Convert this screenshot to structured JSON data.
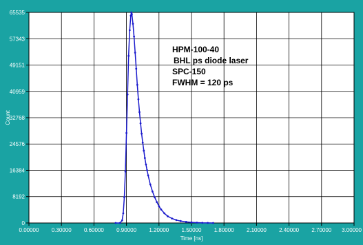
{
  "chart_data": {
    "type": "scatter",
    "xlabel": "Time [ns]",
    "ylabel": "Count",
    "xlim": [
      0.0,
      3.0
    ],
    "ylim": [
      0,
      65535
    ],
    "x_ticks": [
      "0.00000",
      "0.30000",
      "0.60000",
      "0.90000",
      "1.20000",
      "1.50000",
      "1.80000",
      "2.10000",
      "2.40000",
      "2.70000",
      "3.00000"
    ],
    "y_ticks": [
      "0",
      "8192",
      "16384",
      "24576",
      "32768",
      "40959",
      "49151",
      "57343",
      "65535"
    ],
    "grid": true,
    "annotation_lines": [
      "HPM-100-40",
      "BHL ps diode laser",
      "SPC-150",
      "FWHM = 120 ps"
    ],
    "series": [
      {
        "color": "#1a1acc",
        "points": [
          [
            0.8,
            0
          ],
          [
            0.84,
            0
          ],
          [
            0.86,
            800
          ],
          [
            0.87,
            3000
          ],
          [
            0.88,
            8000
          ],
          [
            0.89,
            16000
          ],
          [
            0.9,
            28000
          ],
          [
            0.91,
            40000
          ],
          [
            0.92,
            52000
          ],
          [
            0.93,
            60000
          ],
          [
            0.94,
            64500
          ],
          [
            0.945,
            65535
          ],
          [
            0.95,
            65000
          ],
          [
            0.96,
            62000
          ],
          [
            0.97,
            58000
          ],
          [
            0.98,
            53000
          ],
          [
            0.99,
            48000
          ],
          [
            1.0,
            43000
          ],
          [
            1.01,
            38500
          ],
          [
            1.02,
            34500
          ],
          [
            1.03,
            31000
          ],
          [
            1.04,
            27800
          ],
          [
            1.05,
            25000
          ],
          [
            1.06,
            22500
          ],
          [
            1.07,
            20200
          ],
          [
            1.08,
            18200
          ],
          [
            1.09,
            16400
          ],
          [
            1.1,
            14800
          ],
          [
            1.12,
            12000
          ],
          [
            1.14,
            9800
          ],
          [
            1.16,
            8000
          ],
          [
            1.18,
            6500
          ],
          [
            1.2,
            5200
          ],
          [
            1.22,
            4200
          ],
          [
            1.25,
            3000
          ],
          [
            1.28,
            2100
          ],
          [
            1.32,
            1400
          ],
          [
            1.36,
            900
          ],
          [
            1.4,
            600
          ],
          [
            1.45,
            350
          ],
          [
            1.5,
            200
          ],
          [
            1.55,
            100
          ],
          [
            1.6,
            50
          ],
          [
            1.65,
            20
          ],
          [
            1.7,
            0
          ]
        ]
      }
    ]
  }
}
